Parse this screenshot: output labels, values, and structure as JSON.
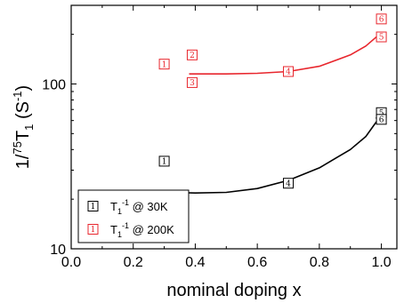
{
  "chart_data": {
    "type": "scatter",
    "xlabel": "nominal doping x",
    "ylabel_main": "1/",
    "ylabel_sup": "75",
    "ylabel_rest": "T",
    "ylabel_sub": "1",
    "ylabel_unit": " (S",
    "ylabel_unit_sup": "-1",
    "ylabel_unit_end": ")",
    "xlim": [
      0.0,
      1.05
    ],
    "ylim": [
      10,
      300
    ],
    "yscale": "log",
    "x_ticks": [
      0.0,
      0.2,
      0.4,
      0.6,
      0.8,
      1.0
    ],
    "x_tick_labels": [
      "0.0",
      "0.2",
      "0.4",
      "0.6",
      "0.8",
      "1.0"
    ],
    "y_ticks": [
      10,
      100
    ],
    "y_tick_labels": [
      "10",
      "100"
    ],
    "series": [
      {
        "legend_prefix": "T",
        "legend_sub": "1",
        "legend_sup": "-1",
        "legend_suffix": " @ 30K",
        "color": "#000000",
        "points": [
          {
            "x": 0.3,
            "y": 34,
            "label": "1"
          },
          {
            "x": 0.7,
            "y": 25,
            "label": "4"
          },
          {
            "x": 1.0,
            "y": 67,
            "label": "5"
          },
          {
            "x": 1.0,
            "y": 61,
            "label": "6"
          }
        ],
        "fit": {
          "x": [
            0.32,
            0.4,
            0.5,
            0.6,
            0.7,
            0.8,
            0.9,
            0.95,
            1.0
          ],
          "y": [
            22,
            21.8,
            22,
            23.2,
            26,
            31,
            40,
            48,
            65
          ]
        }
      },
      {
        "legend_prefix": "T",
        "legend_sub": "1",
        "legend_sup": "-1",
        "legend_suffix": " @ 200K",
        "color": "#e8262d",
        "points": [
          {
            "x": 0.3,
            "y": 132,
            "label": "1"
          },
          {
            "x": 0.39,
            "y": 150,
            "label": "2"
          },
          {
            "x": 0.39,
            "y": 102,
            "label": "3"
          },
          {
            "x": 0.7,
            "y": 119,
            "label": "4"
          },
          {
            "x": 1.0,
            "y": 193,
            "label": "5"
          },
          {
            "x": 1.0,
            "y": 248,
            "label": "6"
          }
        ],
        "fit": {
          "x": [
            0.38,
            0.5,
            0.6,
            0.7,
            0.8,
            0.9,
            0.95,
            1.0
          ],
          "y": [
            115,
            115,
            116,
            119,
            128,
            150,
            170,
            205
          ]
        }
      }
    ]
  }
}
